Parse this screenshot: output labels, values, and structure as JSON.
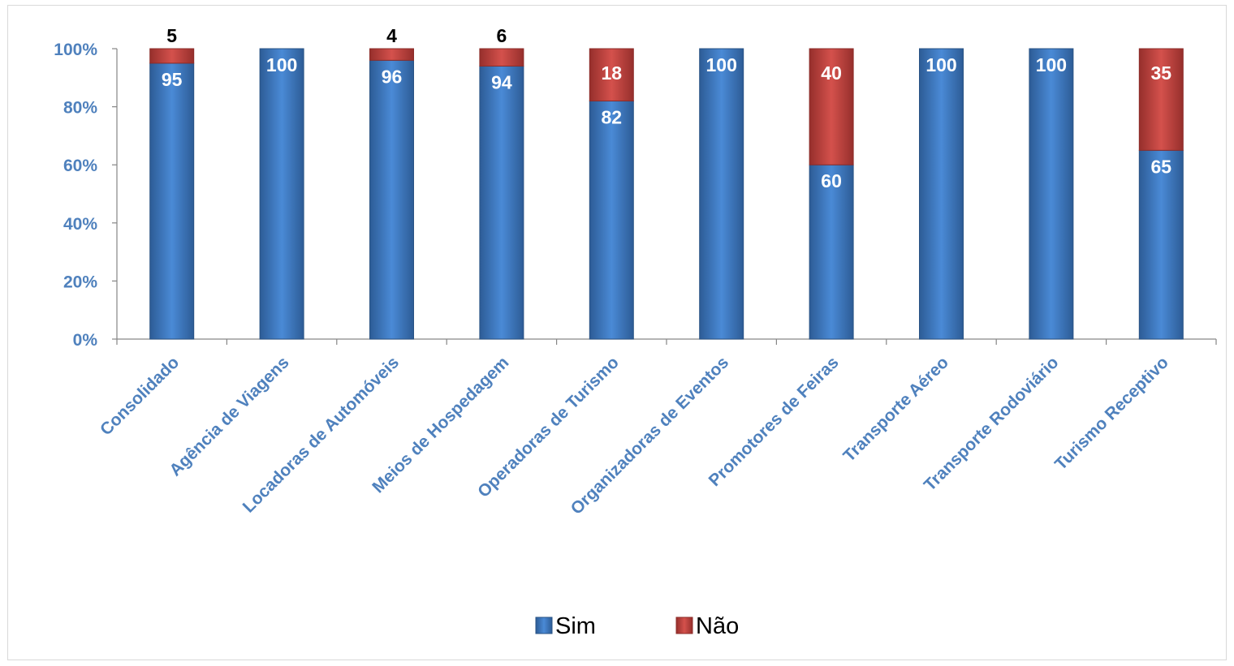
{
  "chart_data": {
    "type": "bar",
    "stacked": true,
    "categories": [
      "Consolidado",
      "Agência de Viagens",
      "Locadoras de Automóveis",
      "Meios de Hospedagem",
      "Operadoras de Turismo",
      "Organizadoras de Eventos",
      "Promotores de Feiras",
      "Transporte Aéreo",
      "Transporte Rodoviário",
      "Turismo Receptivo"
    ],
    "series": [
      {
        "name": "Sim",
        "color": "#4f81bd",
        "values": [
          95,
          100,
          96,
          94,
          82,
          100,
          60,
          100,
          100,
          65
        ]
      },
      {
        "name": "Não",
        "color": "#c0504d",
        "values": [
          5,
          0,
          4,
          6,
          18,
          0,
          40,
          0,
          0,
          35
        ]
      }
    ],
    "yticks": [
      "0%",
      "20%",
      "40%",
      "60%",
      "80%",
      "100%"
    ],
    "ylim": [
      0,
      100
    ],
    "legend_position": "bottom",
    "grid": false,
    "title": "",
    "xlabel": "",
    "ylabel": ""
  }
}
